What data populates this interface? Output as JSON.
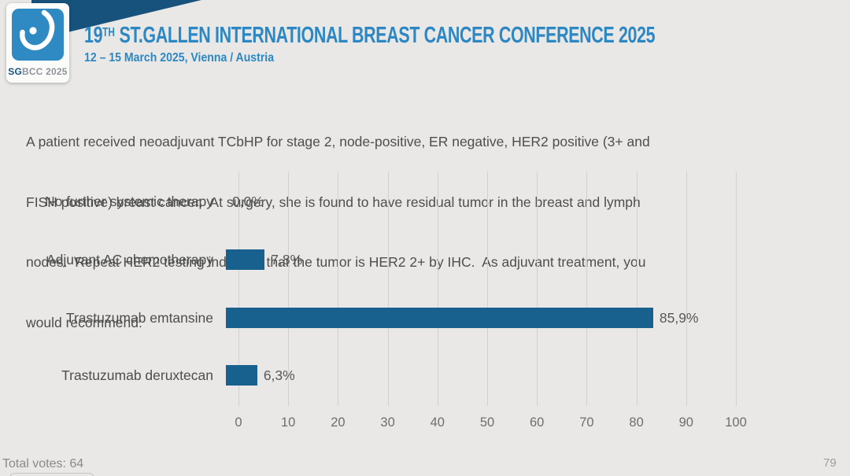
{
  "header": {
    "logo": {
      "badge_bold": "SG",
      "badge_rest": "BCC 2025",
      "icon": "breast-ribbon-icon",
      "square_color": "#2f8ac4",
      "banner_color": "#17527c"
    },
    "title_prefix": "19",
    "title_sup": "TH",
    "title_rest": " ST.GALLEN INTERNATIONAL BREAST CANCER CONFERENCE 2025",
    "subtitle": "12 – 15 March 2025, Vienna / Austria",
    "accent_color": "#2d87c3"
  },
  "question": {
    "lines": [
      "A patient received neoadjuvant TCbHP for stage 2, node-positive, ER negative, HER2 positive (3+ and",
      "FISH positive) breast cancer.  At surgery, she is found to have residual tumor in the breast and lymph",
      "nodes.  Repeat HER2 testing indicates that the tumor is HER2 2+ by IHC.  As adjuvant treatment, you",
      "would recommend:"
    ]
  },
  "chart_data": {
    "type": "bar",
    "orientation": "horizontal",
    "title": "",
    "categories": [
      "No further systemic therapy",
      "Adjuvant AC chemotherapy",
      "Trastuzumab emtansine",
      "Trastuzumab deruxtecan"
    ],
    "values": [
      0.0,
      7.8,
      85.9,
      6.3
    ],
    "value_labels": [
      "0,0%",
      "7,8%",
      "85,9%",
      "6,3%"
    ],
    "xlim": [
      0,
      100
    ],
    "x_ticks": [
      "0",
      "10",
      "20",
      "30",
      "40",
      "50",
      "60",
      "70",
      "80",
      "90",
      "100"
    ],
    "grid": true,
    "legend": false,
    "bar_color": "#18618f"
  },
  "footer": {
    "total_votes": "Total votes: 64",
    "page_number": "79"
  }
}
